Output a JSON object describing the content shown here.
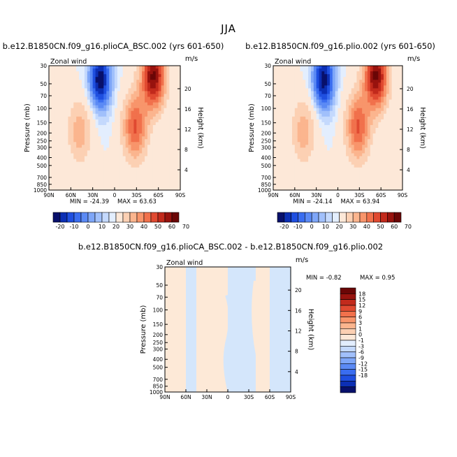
{
  "page_title": "JJA",
  "chart_data": [
    {
      "type": "contour",
      "title": "b.e12.B1850CN.f09_g16.plioCA_BSC.002 (yrs 601-650)",
      "var_label": "Zonal wind",
      "units": "m/s",
      "xlabel": "",
      "ylabel": "Pressure (mb)",
      "y2label": "Height (km)",
      "x_ticks": [
        "90N",
        "60N",
        "30N",
        "0",
        "30S",
        "60S",
        "90S"
      ],
      "y_ticks": [
        "30",
        "50",
        "70",
        "100",
        "150",
        "200",
        "250",
        "300",
        "400",
        "500",
        "700",
        "850",
        "1000"
      ],
      "y2_ticks": [
        "20",
        "16",
        "12",
        "8",
        "4"
      ],
      "min_label": "MIN = -24.39",
      "max_label": "MAX =  63.63",
      "colorbar_levels": [
        "-20",
        "-10",
        "0",
        "10",
        "20",
        "30",
        "40",
        "50",
        "60",
        "70"
      ],
      "peaks": [
        {
          "lat": 20,
          "p": 45,
          "value": -24.39
        },
        {
          "lat": -53,
          "p": 40,
          "value": 63.63
        },
        {
          "lat": -28,
          "p": 170,
          "value": 40
        },
        {
          "lat": 48,
          "p": 190,
          "value": 20
        }
      ]
    },
    {
      "type": "contour",
      "title": "b.e12.B1850CN.f09_g16.plio.002 (yrs 601-650)",
      "var_label": "Zonal wind",
      "units": "m/s",
      "xlabel": "",
      "ylabel": "Pressure (mb)",
      "y2label": "Height (km)",
      "x_ticks": [
        "90N",
        "60N",
        "30N",
        "0",
        "30S",
        "60S",
        "90S"
      ],
      "y_ticks": [
        "30",
        "50",
        "70",
        "100",
        "150",
        "200",
        "250",
        "300",
        "400",
        "500",
        "700",
        "850",
        "1000"
      ],
      "y2_ticks": [
        "20",
        "16",
        "12",
        "8",
        "4"
      ],
      "min_label": "MIN = -24.14",
      "max_label": "MAX =  63.94",
      "colorbar_levels": [
        "-20",
        "-10",
        "0",
        "10",
        "20",
        "30",
        "40",
        "50",
        "60",
        "70"
      ],
      "peaks": [
        {
          "lat": 20,
          "p": 45,
          "value": -24.14
        },
        {
          "lat": -53,
          "p": 40,
          "value": 63.94
        },
        {
          "lat": -28,
          "p": 170,
          "value": 40
        },
        {
          "lat": 48,
          "p": 190,
          "value": 20
        }
      ]
    },
    {
      "type": "contour",
      "title": "b.e12.B1850CN.f09_g16.plioCA_BSC.002 - b.e12.B1850CN.f09_g16.plio.002",
      "var_label": "Zonal wind",
      "units": "m/s",
      "xlabel": "",
      "ylabel": "Pressure (mb)",
      "y2label": "Height (km)",
      "x_ticks": [
        "90N",
        "60N",
        "30N",
        "0",
        "30S",
        "60S",
        "90S"
      ],
      "y_ticks": [
        "30",
        "50",
        "70",
        "100",
        "150",
        "200",
        "250",
        "300",
        "400",
        "500",
        "700",
        "850",
        "1000"
      ],
      "y2_ticks": [
        "20",
        "16",
        "12",
        "8",
        "4"
      ],
      "min_label": "MIN =  -0.82",
      "max_label": "MAX =   0.95",
      "colorbar_levels": [
        "18",
        "15",
        "12",
        "9",
        "6",
        "3",
        "1",
        "0",
        "-1",
        "-3",
        "-6",
        "-9",
        "-12",
        "-15",
        "-18"
      ],
      "bands": [
        {
          "lat_from": 90,
          "lat_to": 60,
          "sign": "positive"
        },
        {
          "lat_from": 60,
          "lat_to": 45,
          "sign": "negative"
        },
        {
          "lat_from": 45,
          "lat_to": 0,
          "sign": "positive"
        },
        {
          "lat_from": 0,
          "lat_to": -40,
          "sign": "negative"
        },
        {
          "lat_from": -40,
          "lat_to": -60,
          "sign": "positive"
        },
        {
          "lat_from": -60,
          "lat_to": -90,
          "sign": "negative"
        }
      ]
    }
  ],
  "colors": {
    "diverging": [
      "#08106b",
      "#0c2fb4",
      "#1f4fe0",
      "#3a6df0",
      "#5b8af5",
      "#7ea6f8",
      "#a1c0fb",
      "#c4d9fd",
      "#e3eefe",
      "#fde8d8",
      "#fcd0b3",
      "#fbb58e",
      "#f8956b",
      "#f1714c",
      "#e04a31",
      "#c22a1c",
      "#98130e",
      "#6a0606"
    ],
    "diff_pos": "#fde9d7",
    "diff_neg": "#d4e6fb"
  }
}
